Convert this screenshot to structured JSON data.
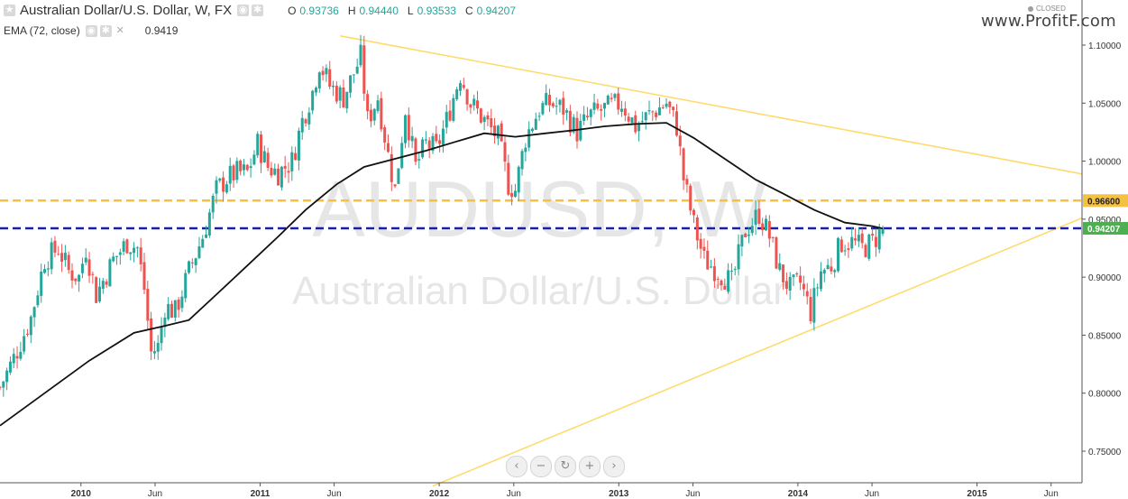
{
  "header": {
    "symbol_title": "Australian Dollar/U.S. Dollar, W, FX",
    "ohlc": [
      {
        "key": "O",
        "value": "0.93736"
      },
      {
        "key": "H",
        "value": "0.94440"
      },
      {
        "key": "L",
        "value": "0.93533"
      },
      {
        "key": "C",
        "value": "0.94207"
      }
    ],
    "indicator_label": "EMA (72, close)",
    "indicator_value": "0.9419",
    "status": "CLOSED"
  },
  "brand": "www.ProfitF.com",
  "watermark": {
    "ticker": "AUDUSD, W",
    "name": "Australian Dollar/U.S. Dollar"
  },
  "colors": {
    "up": "#26a69a",
    "down": "#ef5350",
    "ema": "#111111",
    "trendline": "#ffd966",
    "resistance": "#f6c143",
    "support_blue": "#1b1fa6",
    "price_tag": "#4caf50"
  },
  "nav_icons": [
    "chevron-left-icon",
    "zoom-out-icon",
    "reset-icon",
    "zoom-in-icon",
    "chevron-right-icon"
  ],
  "chart_data": {
    "type": "candlestick",
    "title": "Australian Dollar/U.S. Dollar, W, FX",
    "interval": "Weekly",
    "ylim": [
      0.72,
      1.11
    ],
    "x_range": [
      "2009-07-20",
      "2015-08-03"
    ],
    "y_ticks": [
      "1.10000",
      "1.05000",
      "1.00000",
      "0.95000",
      "0.90000",
      "0.85000",
      "0.80000",
      "0.75000"
    ],
    "x_ticks": [
      {
        "date": "2010-01-01",
        "label": "2010",
        "bold": true
      },
      {
        "date": "2010-06-01",
        "label": "Jun",
        "bold": false
      },
      {
        "date": "2011-01-01",
        "label": "2011",
        "bold": true
      },
      {
        "date": "2011-06-01",
        "label": "Jun",
        "bold": false
      },
      {
        "date": "2012-01-01",
        "label": "2012",
        "bold": true
      },
      {
        "date": "2012-06-01",
        "label": "Jun",
        "bold": false
      },
      {
        "date": "2013-01-01",
        "label": "2013",
        "bold": true
      },
      {
        "date": "2013-06-01",
        "label": "Jun",
        "bold": false
      },
      {
        "date": "2014-01-01",
        "label": "2014",
        "bold": true
      },
      {
        "date": "2014-06-01",
        "label": "Jun",
        "bold": false
      },
      {
        "date": "2015-01-01",
        "label": "2015",
        "bold": true
      },
      {
        "date": "2015-06-01",
        "label": "Jun",
        "bold": false
      }
    ],
    "close_path": [
      [
        "2009-07-20",
        0.805
      ],
      [
        "2009-08-17",
        0.83
      ],
      [
        "2009-09-21",
        0.865
      ],
      [
        "2009-10-19",
        0.915
      ],
      [
        "2009-11-16",
        0.925
      ],
      [
        "2009-12-07",
        0.905
      ],
      [
        "2009-12-28",
        0.9
      ],
      [
        "2010-01-11",
        0.925
      ],
      [
        "2010-02-01",
        0.885
      ],
      [
        "2010-03-08",
        0.915
      ],
      [
        "2010-04-05",
        0.93
      ],
      [
        "2010-04-26",
        0.925
      ],
      [
        "2010-05-10",
        0.89
      ],
      [
        "2010-05-24",
        0.835
      ],
      [
        "2010-06-07",
        0.84
      ],
      [
        "2010-06-21",
        0.875
      ],
      [
        "2010-07-12",
        0.87
      ],
      [
        "2010-08-09",
        0.905
      ],
      [
        "2010-09-06",
        0.935
      ],
      [
        "2010-10-04",
        0.975
      ],
      [
        "2010-10-25",
        0.985
      ],
      [
        "2010-11-15",
        0.99
      ],
      [
        "2010-12-06",
        0.99
      ],
      [
        "2010-12-27",
        1.015
      ],
      [
        "2011-01-17",
        0.995
      ],
      [
        "2011-02-07",
        0.99
      ],
      [
        "2011-03-07",
        1.0
      ],
      [
        "2011-03-28",
        1.035
      ],
      [
        "2011-04-18",
        1.06
      ],
      [
        "2011-05-02",
        1.085
      ],
      [
        "2011-05-23",
        1.065
      ],
      [
        "2011-06-20",
        1.055
      ],
      [
        "2011-07-25",
        1.09
      ],
      [
        "2011-08-08",
        1.035
      ],
      [
        "2011-08-29",
        1.055
      ],
      [
        "2011-09-19",
        1.005
      ],
      [
        "2011-10-03",
        0.975
      ],
      [
        "2011-10-24",
        1.045
      ],
      [
        "2011-11-14",
        0.995
      ],
      [
        "2011-12-05",
        1.015
      ],
      [
        "2011-12-26",
        1.01
      ],
      [
        "2012-01-16",
        1.035
      ],
      [
        "2012-02-13",
        1.075
      ],
      [
        "2012-03-05",
        1.05
      ],
      [
        "2012-04-02",
        1.035
      ],
      [
        "2012-04-30",
        1.02
      ],
      [
        "2012-05-21",
        0.98
      ],
      [
        "2012-06-04",
        0.975
      ],
      [
        "2012-06-25",
        1.02
      ],
      [
        "2012-07-23",
        1.045
      ],
      [
        "2012-08-13",
        1.05
      ],
      [
        "2012-09-10",
        1.045
      ],
      [
        "2012-10-08",
        1.025
      ],
      [
        "2012-11-05",
        1.04
      ],
      [
        "2012-12-03",
        1.045
      ],
      [
        "2013-01-07",
        1.05
      ],
      [
        "2013-02-04",
        1.03
      ],
      [
        "2013-03-04",
        1.04
      ],
      [
        "2013-04-08",
        1.05
      ],
      [
        "2013-04-29",
        1.03
      ],
      [
        "2013-05-13",
        0.985
      ],
      [
        "2013-06-03",
        0.945
      ],
      [
        "2013-06-24",
        0.915
      ],
      [
        "2013-07-22",
        0.905
      ],
      [
        "2013-08-19",
        0.895
      ],
      [
        "2013-09-16",
        0.94
      ],
      [
        "2013-10-14",
        0.955
      ],
      [
        "2013-11-04",
        0.935
      ],
      [
        "2013-11-25",
        0.905
      ],
      [
        "2013-12-16",
        0.89
      ],
      [
        "2014-01-06",
        0.895
      ],
      [
        "2014-01-27",
        0.87
      ],
      [
        "2014-02-17",
        0.905
      ],
      [
        "2014-03-10",
        0.91
      ],
      [
        "2014-03-31",
        0.93
      ],
      [
        "2014-04-21",
        0.93
      ],
      [
        "2014-05-12",
        0.925
      ],
      [
        "2014-06-02",
        0.93
      ],
      [
        "2014-06-23",
        0.94207
      ]
    ],
    "ema_72": [
      [
        "2009-07-20",
        0.772
      ],
      [
        "2009-10-19",
        0.8
      ],
      [
        "2010-01-18",
        0.828
      ],
      [
        "2010-04-19",
        0.852
      ],
      [
        "2010-06-21",
        0.858
      ],
      [
        "2010-08-09",
        0.863
      ],
      [
        "2010-10-04",
        0.885
      ],
      [
        "2010-12-06",
        0.91
      ],
      [
        "2011-02-07",
        0.935
      ],
      [
        "2011-04-04",
        0.958
      ],
      [
        "2011-06-06",
        0.98
      ],
      [
        "2011-08-01",
        0.995
      ],
      [
        "2011-10-03",
        1.002
      ],
      [
        "2011-12-05",
        1.009
      ],
      [
        "2012-02-06",
        1.017
      ],
      [
        "2012-04-02",
        1.024
      ],
      [
        "2012-06-04",
        1.021
      ],
      [
        "2012-08-06",
        1.024
      ],
      [
        "2012-10-08",
        1.027
      ],
      [
        "2012-12-03",
        1.03
      ],
      [
        "2013-02-04",
        1.032
      ],
      [
        "2013-04-08",
        1.033
      ],
      [
        "2013-06-03",
        1.02
      ],
      [
        "2013-08-05",
        1.002
      ],
      [
        "2013-10-07",
        0.984
      ],
      [
        "2013-12-02",
        0.972
      ],
      [
        "2014-02-03",
        0.958
      ],
      [
        "2014-04-07",
        0.947
      ],
      [
        "2014-06-02",
        0.944
      ],
      [
        "2014-06-23",
        0.9419
      ]
    ],
    "lines": [
      {
        "name": "descending-trendline",
        "points": [
          [
            "2011-06-13",
            1.108
          ],
          [
            "2015-08-03",
            0.989
          ]
        ]
      },
      {
        "name": "ascending-trendline",
        "points": [
          [
            "2011-12-19",
            0.72
          ],
          [
            "2015-08-03",
            0.951
          ]
        ]
      },
      {
        "name": "resistance-line",
        "level": 0.966,
        "label": "0.96600",
        "style": "dashed"
      },
      {
        "name": "current-price-line",
        "level": 0.94207,
        "label": "0.94207",
        "style": "dashed"
      }
    ]
  }
}
